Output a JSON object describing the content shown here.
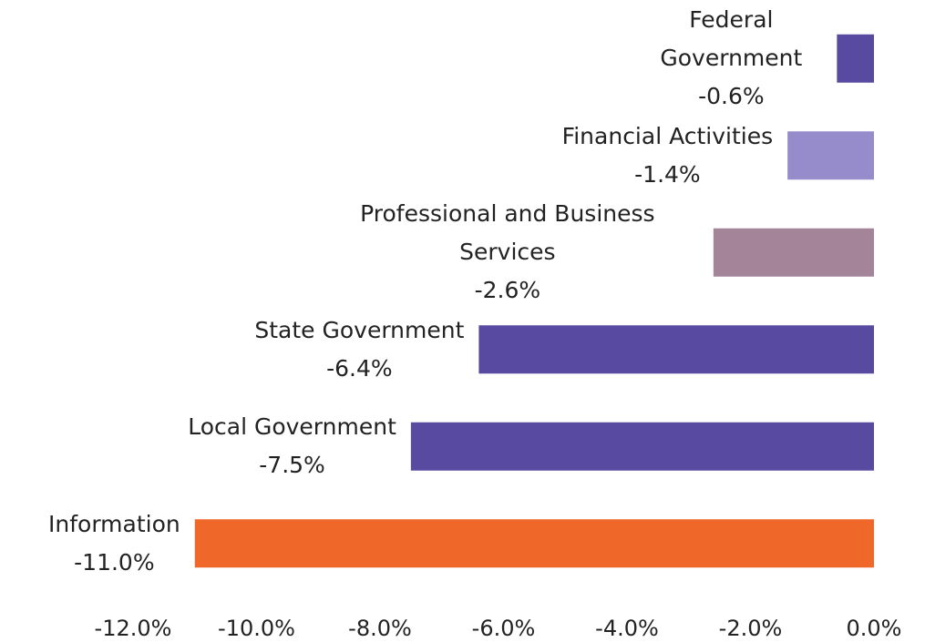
{
  "chart_data": {
    "type": "bar",
    "orientation": "horizontal",
    "categories": [
      "Federal Government",
      "Financial Activities",
      "Professional and Business Services",
      "State Government",
      "Local Government",
      "Information"
    ],
    "values": [
      -0.6,
      -1.4,
      -2.6,
      -6.4,
      -7.5,
      -11.0
    ],
    "value_labels": [
      "-0.6%",
      "-1.4%",
      "-2.6%",
      "-6.4%",
      "-7.5%",
      "-11.0%"
    ],
    "colors": [
      "#574aa0",
      "#978ccb",
      "#a48498",
      "#574aa0",
      "#574aa0",
      "#f0672a"
    ],
    "xlim": [
      -12,
      0
    ],
    "xticks": [
      {
        "value": -12,
        "label": "-12.0%"
      },
      {
        "value": -10,
        "label": "-10.0%"
      },
      {
        "value": -8,
        "label": "-8.0%"
      },
      {
        "value": -6,
        "label": "-6.0%"
      },
      {
        "value": -4,
        "label": "-4.0%"
      },
      {
        "value": -2,
        "label": "-2.0%"
      },
      {
        "value": 0,
        "label": "0.0%"
      }
    ],
    "grid": false
  }
}
